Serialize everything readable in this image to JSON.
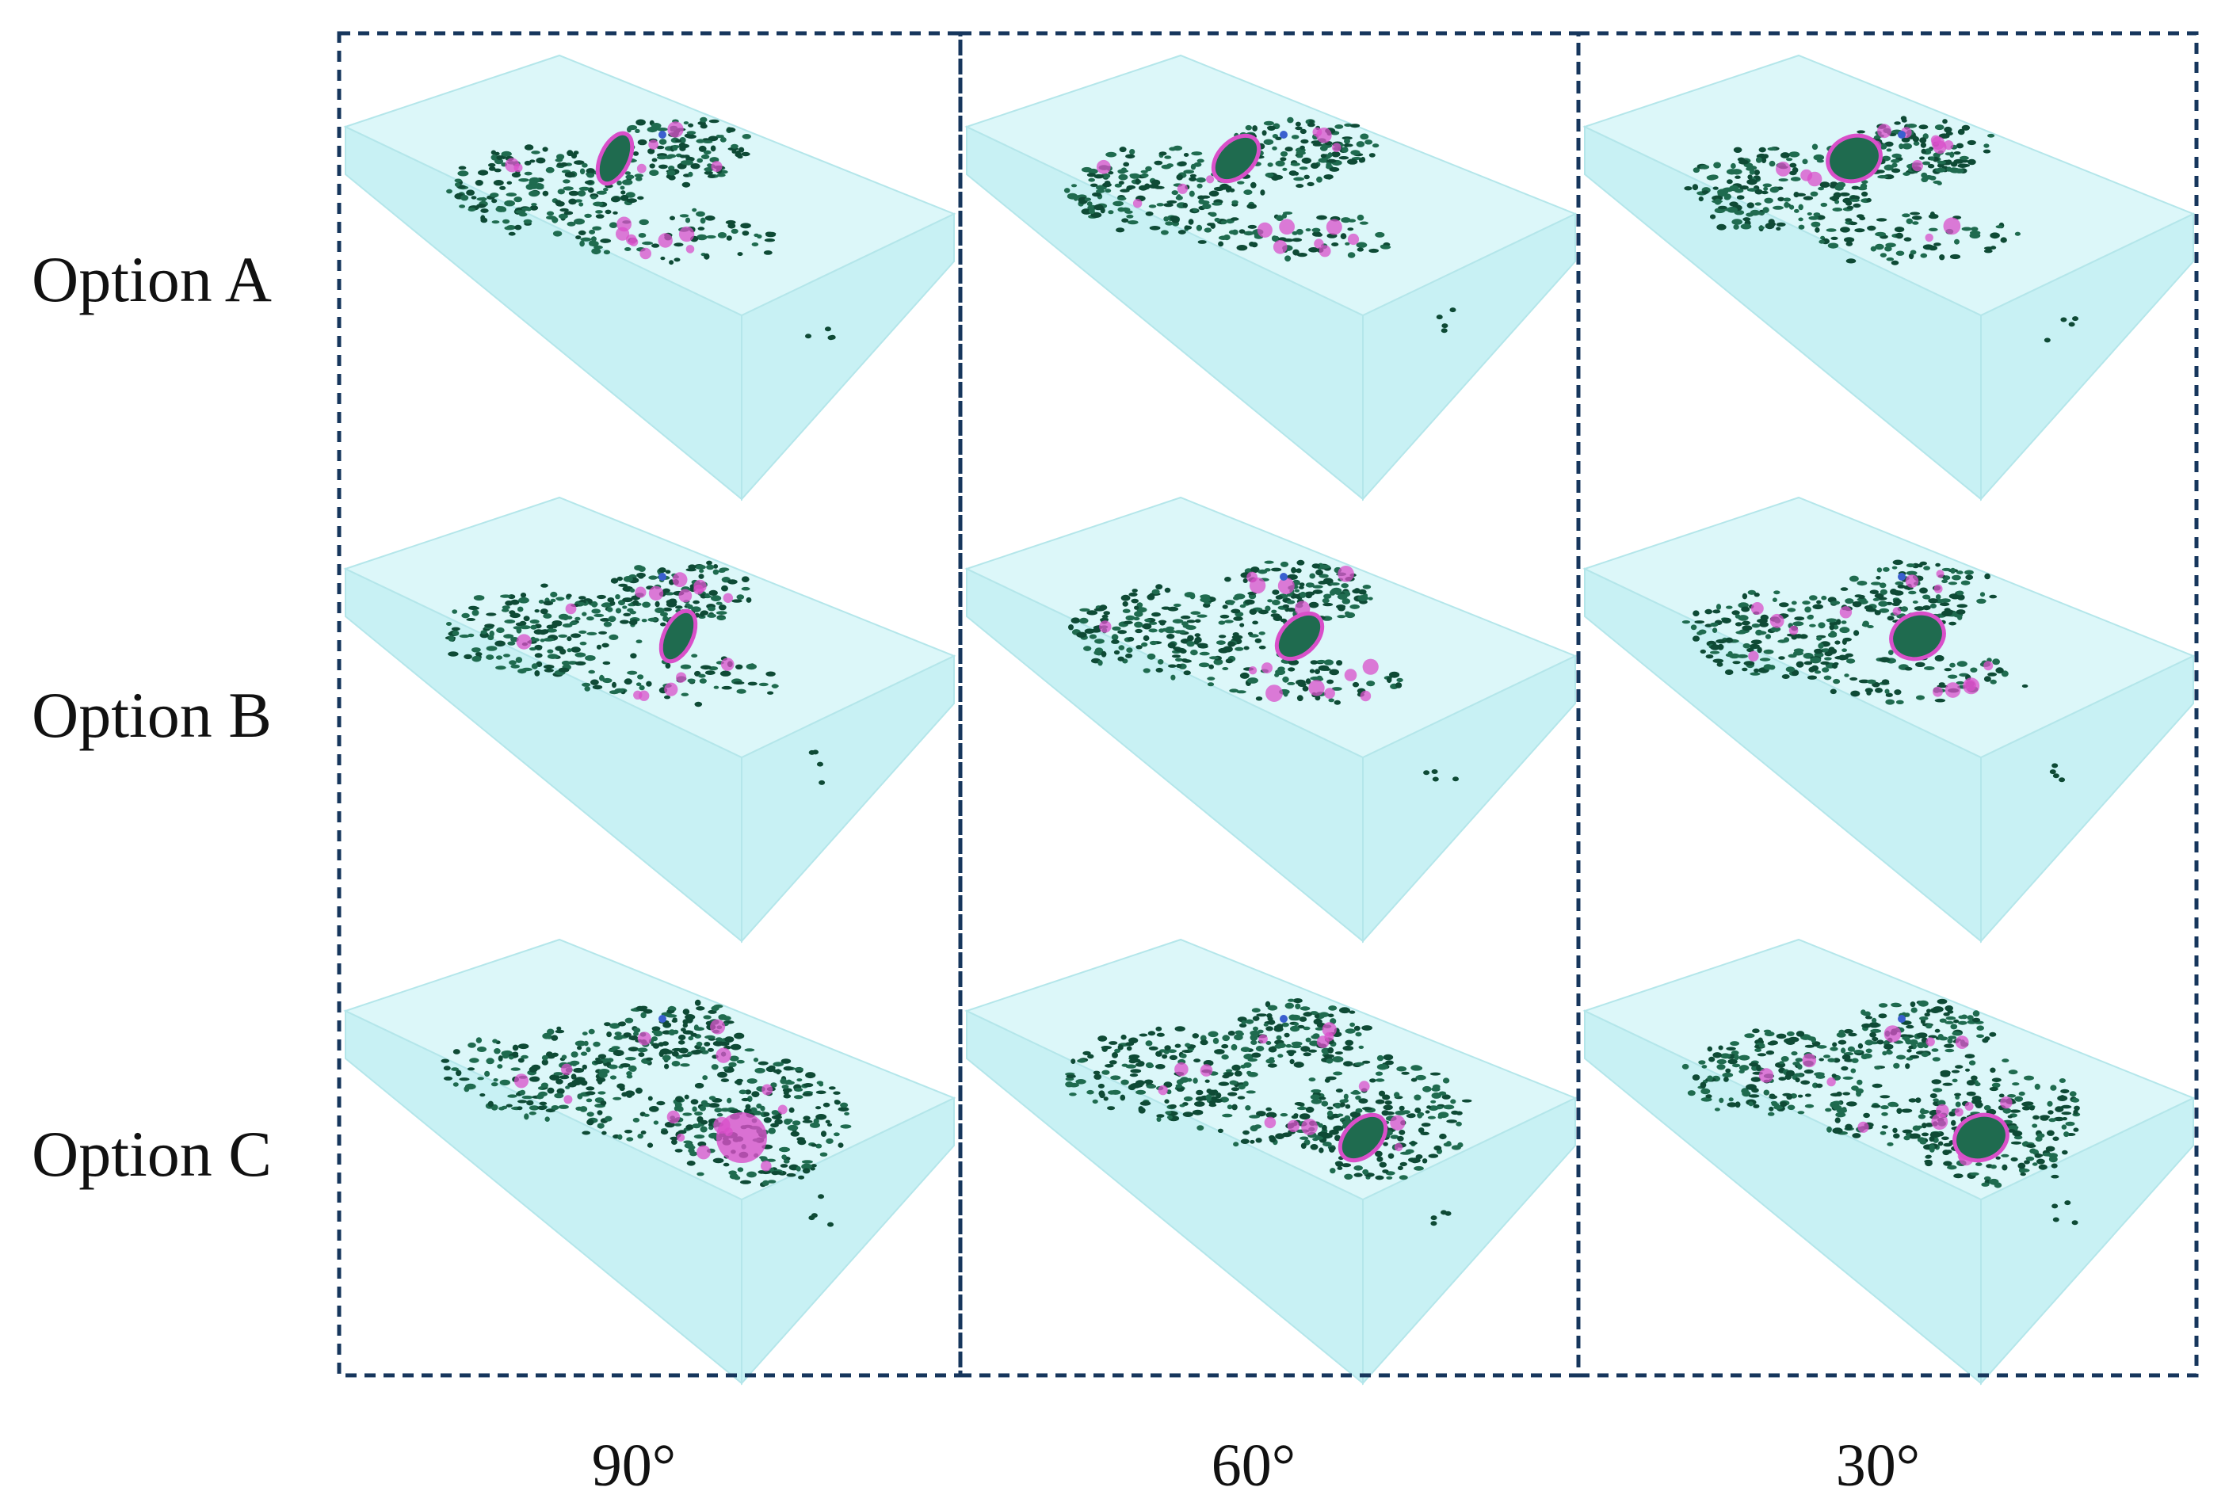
{
  "rows": [
    {
      "label": "Option A"
    },
    {
      "label": "Option B"
    },
    {
      "label": "Option C"
    }
  ],
  "columns": [
    {
      "label": "90°"
    },
    {
      "label": "60°"
    },
    {
      "label": "30°"
    }
  ],
  "colors": {
    "frame": "#16365c",
    "block_top": "#dcf7f9",
    "block_side": "#c8f1f4",
    "block_edge": "#b4e6ea",
    "cluster": "#1f6b4f",
    "cluster_dark": "#0e4a35",
    "highlight": "#d94fc9",
    "accent_blue": "#3a5fcf"
  }
}
